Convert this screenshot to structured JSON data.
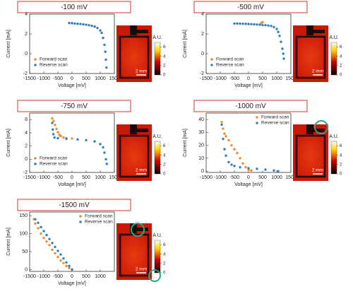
{
  "chart_data": [
    {
      "type": "scatter",
      "title": "-100 mV",
      "xlabel": "Voltage [mV]",
      "ylabel": "Current [mA]",
      "xlim": [
        -1500,
        1500
      ],
      "xticks": [
        -1500,
        -1000,
        -500,
        0,
        500,
        1000,
        1500
      ],
      "ylim": [
        -2,
        4
      ],
      "yticks": [
        -2,
        0,
        2,
        4
      ],
      "legend": "lower left",
      "series": [
        {
          "name": "Forward scan",
          "color": "#f08a2a",
          "x": [
            0,
            400,
            800,
            1100
          ],
          "values": [
            3.08,
            2.97,
            2.74,
            1.6
          ]
        },
        {
          "name": "Reverse scan",
          "color": "#2f7fc1",
          "x": [
            -100,
            0,
            100,
            200,
            300,
            400,
            500,
            600,
            700,
            800,
            900,
            1000,
            1050,
            1100,
            1150,
            1180,
            1200,
            1220
          ],
          "values": [
            3.1,
            3.08,
            3.05,
            3.02,
            3.0,
            2.97,
            2.93,
            2.88,
            2.82,
            2.74,
            2.6,
            2.35,
            2.1,
            1.6,
            0.9,
            0.2,
            -0.6,
            -1.4
          ]
        }
      ],
      "image": {
        "colorbar_label": "A.U.",
        "colorbar_ticks": [
          0,
          2,
          4,
          6
        ],
        "scale_bar": "2 mm"
      }
    },
    {
      "type": "scatter",
      "title": "-500 mV",
      "xlabel": "Voltage [mV]",
      "ylabel": "Current [mA]",
      "xlim": [
        -1500,
        1500
      ],
      "xticks": [
        -1500,
        -1000,
        -500,
        0,
        500,
        1000,
        1500
      ],
      "ylim": [
        -2,
        4
      ],
      "yticks": [
        -2,
        0,
        2,
        4
      ],
      "legend": "lower left",
      "series": [
        {
          "name": "Forward scan",
          "color": "#f08a2a",
          "x": [
            -400,
            0,
            450,
            500
          ],
          "values": [
            3.05,
            3.0,
            3.1,
            3.2
          ]
        },
        {
          "name": "Reverse scan",
          "color": "#2f7fc1",
          "x": [
            -500,
            -400,
            -300,
            -200,
            -100,
            0,
            100,
            200,
            300,
            400,
            500,
            600,
            700,
            800,
            900,
            1000,
            1050,
            1100,
            1150,
            1200,
            1230,
            1250
          ],
          "values": [
            3.05,
            3.05,
            3.04,
            3.03,
            3.02,
            3.0,
            2.99,
            2.97,
            2.95,
            2.93,
            2.9,
            2.88,
            2.85,
            2.8,
            2.7,
            2.5,
            2.2,
            1.8,
            1.2,
            0.5,
            0.0,
            -0.5
          ]
        }
      ],
      "image": {
        "colorbar_label": "A.U.",
        "colorbar_ticks": [
          0,
          2,
          4,
          6
        ],
        "scale_bar": "2 mm"
      }
    },
    {
      "type": "scatter",
      "title": "-750 mV",
      "xlabel": "Voltage [mV]",
      "ylabel": "Current [mA]",
      "xlim": [
        -1500,
        1500
      ],
      "xticks": [
        -1500,
        -1000,
        -500,
        0,
        500,
        1000,
        1500
      ],
      "ylim": [
        -2,
        7
      ],
      "yticks": [
        -2,
        0,
        2,
        4,
        6
      ],
      "legend": "lower left",
      "series": [
        {
          "name": "Forward scan",
          "color": "#f08a2a",
          "x": [
            -700,
            -650,
            -600,
            -550,
            -500,
            -450,
            -400,
            -300,
            -200,
            0
          ],
          "values": [
            6.2,
            5.8,
            5.2,
            4.6,
            4.1,
            3.7,
            3.5,
            3.3,
            3.2,
            3.15
          ]
        },
        {
          "name": "Reverse scan",
          "color": "#2f7fc1",
          "x": [
            -700,
            -680,
            -660,
            -620,
            -500,
            -200,
            200,
            500,
            800,
            1000,
            1100,
            1150,
            1200,
            1230
          ],
          "values": [
            5.5,
            4.5,
            3.8,
            3.3,
            3.2,
            3.1,
            3.0,
            2.9,
            2.7,
            2.3,
            1.8,
            1.0,
            0.0,
            -0.7
          ]
        }
      ],
      "image": {
        "colorbar_label": "A.U.",
        "colorbar_ticks": [
          0,
          2,
          4,
          6
        ],
        "scale_bar": "2 mm"
      }
    },
    {
      "type": "scatter",
      "title": "-1000 mV",
      "xlabel": "Voltage [mV]",
      "ylabel": "Current [mA]",
      "xlim": [
        -1500,
        1500
      ],
      "xticks": [
        -1500,
        -1000,
        -500,
        0,
        500,
        1000,
        1500
      ],
      "ylim": [
        -1,
        45
      ],
      "yticks": [
        0,
        10,
        20,
        30,
        40
      ],
      "legend": "upper right",
      "series": [
        {
          "name": "Forward scan",
          "color": "#f08a2a",
          "x": [
            -950,
            -900,
            -850,
            -800,
            -700,
            -600,
            -500,
            -400,
            -300,
            -200,
            -100,
            0,
            100
          ],
          "values": [
            38,
            33,
            29,
            27,
            24,
            20,
            17,
            14,
            10,
            6,
            3,
            1,
            0.5
          ]
        },
        {
          "name": "Reverse scan",
          "color": "#2f7fc1",
          "x": [
            -950,
            -900,
            -850,
            -800,
            -700,
            -600,
            -500,
            -300,
            0,
            300,
            600,
            900,
            1050
          ],
          "values": [
            36,
            25,
            17,
            12,
            7,
            5,
            4,
            3,
            2.3,
            1.8,
            1.2,
            0.5,
            0
          ]
        }
      ],
      "image": {
        "colorbar_label": "A.U.",
        "colorbar_ticks": [
          0,
          2,
          4,
          6
        ],
        "scale_bar": "2 mm"
      }
    },
    {
      "type": "scatter",
      "title": "-1500 mV",
      "xlabel": "Voltage [mV]",
      "ylabel": "Current [mA]",
      "xlim": [
        -1500,
        1500
      ],
      "xticks": [
        -1500,
        -1000,
        -500,
        0,
        500,
        1000
      ],
      "ylim": [
        -5,
        160
      ],
      "yticks": [
        0,
        50,
        100,
        150
      ],
      "legend": "upper right",
      "series": [
        {
          "name": "Forward scan",
          "color": "#f08a2a",
          "x": [
            -1350,
            -1300,
            -1200,
            -1100,
            -1000,
            -900,
            -800,
            -700,
            -600,
            -500,
            -400,
            -300,
            -200,
            -100,
            0
          ],
          "values": [
            140,
            128,
            115,
            100,
            88,
            78,
            68,
            55,
            45,
            35,
            25,
            18,
            10,
            4,
            0
          ]
        },
        {
          "name": "Reverse scan",
          "color": "#2f7fc1",
          "x": [
            -1300,
            -1200,
            -1100,
            -1000,
            -900,
            -800,
            -700,
            -600,
            -500,
            -400,
            -300,
            -200,
            -100,
            0
          ],
          "values": [
            140,
            130,
            118,
            107,
            96,
            85,
            74,
            63,
            52,
            42,
            31,
            20,
            10,
            0
          ]
        }
      ],
      "image": {
        "colorbar_label": "A.U.",
        "colorbar_ticks": [
          0,
          2,
          4,
          6
        ],
        "scale_bar": "2 mm"
      }
    }
  ]
}
